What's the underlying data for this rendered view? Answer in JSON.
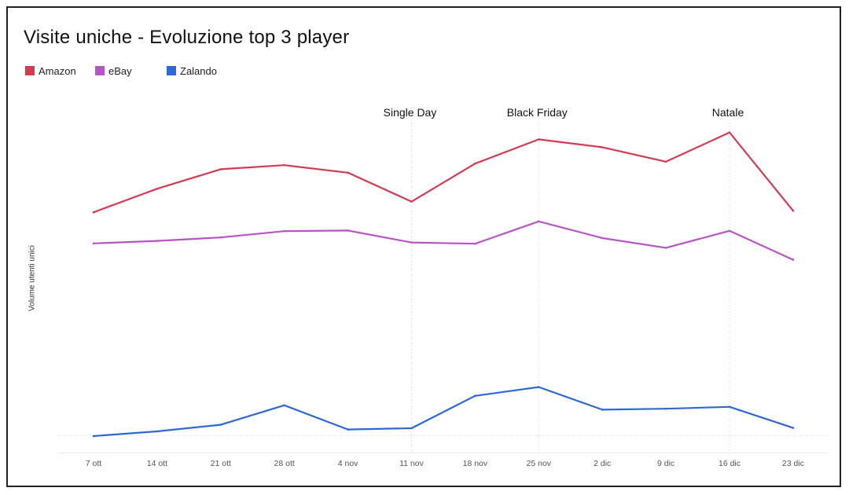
{
  "chart_data": {
    "type": "line",
    "title": "Visite uniche - Evoluzione top 3 player",
    "xlabel": "",
    "ylabel": "Volume utenti unici",
    "categories": [
      "7 ott",
      "14 ott",
      "21 ott",
      "28 ott",
      "4 nov",
      "11 nov",
      "18 nov",
      "25 nov",
      "2 dic",
      "9 dic",
      "16 dic",
      "23 dic"
    ],
    "ylim": [
      0,
      100
    ],
    "y_tick_labels_shown": false,
    "legend_position": "top-left",
    "series": [
      {
        "name": "Amazon",
        "color": "#d23c52",
        "values": [
          71.2,
          78.7,
          84.9,
          86.2,
          83.8,
          74.6,
          86.7,
          94.4,
          91.9,
          87.3,
          96.6,
          71.7
        ]
      },
      {
        "name": "eBay",
        "color": "#b855c4",
        "values": [
          61.3,
          62.1,
          63.2,
          65.2,
          65.4,
          61.6,
          61.2,
          68.3,
          63.0,
          59.9,
          65.3,
          56.1
        ]
      },
      {
        "name": "Zalando",
        "color": "#2e68d6",
        "values": [
          0.0,
          1.5,
          3.6,
          9.8,
          2.1,
          2.5,
          12.8,
          15.6,
          8.4,
          8.7,
          9.3,
          2.6
        ]
      }
    ],
    "annotations": [
      {
        "text": "Single Day",
        "category": "11 nov"
      },
      {
        "text": "Black Friday",
        "category": "25 nov"
      },
      {
        "text": "Natale",
        "category": "16 dic"
      }
    ]
  }
}
